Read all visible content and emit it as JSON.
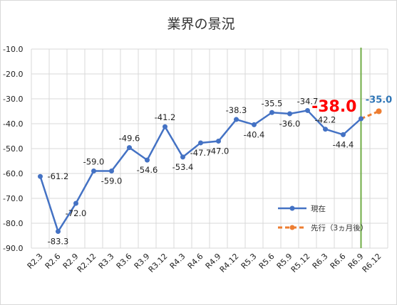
{
  "chart_data": {
    "type": "line",
    "title": "業界の景況",
    "categories": [
      "R2.3",
      "R2.6",
      "R2.9",
      "R2.12",
      "R3.3",
      "R3.6",
      "R3.9",
      "R3.12",
      "R4.3",
      "R4.6",
      "R4.9",
      "R4.12",
      "R5.3",
      "R5.6",
      "R5.9",
      "R5.12",
      "R6.3",
      "R6.6",
      "R6.9",
      "R6.12"
    ],
    "ylim": [
      -90,
      -10
    ],
    "yticks": [
      "-10.0",
      "-20.0",
      "-30.0",
      "-40.0",
      "-50.0",
      "-60.0",
      "-70.0",
      "-80.0",
      "-90.0"
    ],
    "grid": true,
    "legend_position": "right",
    "current_marker_category": "R6.9",
    "series": [
      {
        "name": "現在",
        "color": "#4472C4",
        "values": [
          -61.2,
          -83.3,
          -72.0,
          -59.0,
          -59.0,
          -49.6,
          -54.6,
          -41.2,
          -53.4,
          -47.7,
          -47.0,
          -38.3,
          -40.4,
          -35.5,
          -36.0,
          -34.7,
          -42.2,
          -44.4,
          -38.0,
          null
        ],
        "labels": [
          "-61.2",
          "-83.3",
          "-72.0",
          "-59.0",
          "-59.0",
          "-49.6",
          "-54.6",
          "-41.2",
          "-53.4",
          "-47.7",
          "-47.0",
          "-38.3",
          "-40.4",
          "-35.5",
          "-36.0",
          "-34.7",
          "-42.2",
          "-44.4",
          "-38.0",
          ""
        ]
      },
      {
        "name": "先行（3ヵ月後）",
        "color": "#ED7D31",
        "values": [
          null,
          null,
          null,
          null,
          null,
          null,
          null,
          null,
          null,
          null,
          null,
          null,
          null,
          null,
          null,
          null,
          null,
          null,
          -38.0,
          -35.0
        ],
        "labels": [
          "",
          "",
          "",
          "",
          "",
          "",
          "",
          "",
          "",
          "",
          "",
          "",
          "",
          "",
          "",
          "",
          "",
          "",
          "",
          "-35.0"
        ]
      }
    ],
    "colors": {
      "highlight": "#FF0000",
      "forecast_label": "#2E75B6",
      "vline": "#70AD47",
      "grid": "#D9D9D9"
    }
  }
}
